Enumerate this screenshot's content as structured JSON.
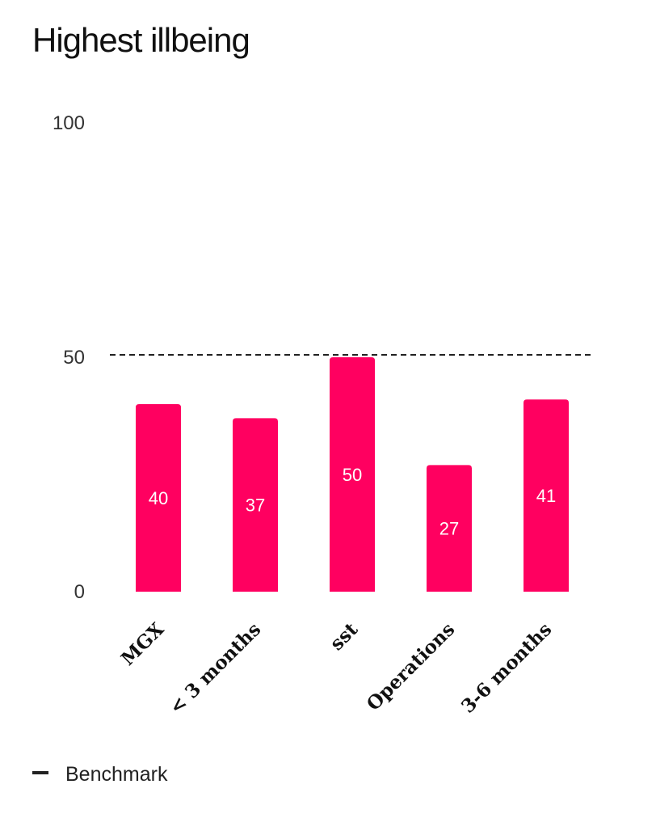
{
  "colors": {
    "bar": "#ff0060",
    "benchmark": "#222222",
    "text": "#111111"
  },
  "legend": {
    "benchmark_label": "Benchmark"
  },
  "chart_data": {
    "type": "bar",
    "title": "Highest illbeing",
    "categories": [
      "MGX",
      "< 3 months",
      "sst",
      "Operations",
      "3-6 months"
    ],
    "values": [
      40,
      37,
      50,
      27,
      41
    ],
    "ylim": [
      0,
      100
    ],
    "yticks": [
      "0",
      "50",
      "100"
    ],
    "benchmark": 50,
    "xlabel": "",
    "ylabel": "",
    "grid": false,
    "legend_position": "bottom-left"
  }
}
